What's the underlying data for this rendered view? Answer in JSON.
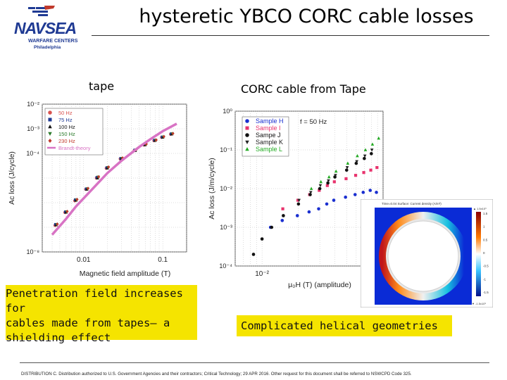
{
  "slide": {
    "title": "hysteretic YBCO CORC cable losses",
    "logo": {
      "name": "NAVSEA",
      "line1": "WARFARE CENTERS",
      "line2": "Philadelphia"
    },
    "label_left": "tape",
    "label_right": "CORC cable from Tape",
    "note_left": [
      "Penetration field increases for",
      "cables made from tapes– a",
      "shielding effect"
    ],
    "note_right": "Complicated helical geometries",
    "footer": "DISTRIBUTION C. Distribution authorized to U.S. Government Agencies and their contractors; Critical Technology; 29 APR 2016. Other request for this document shall be referred to NSWCPD Code 325.",
    "colors": {
      "note_bg": "#f5e400",
      "title": "#000000"
    }
  },
  "chart_data": [
    {
      "type": "scatter",
      "xlabel": "Magnetic field amplitude (T)",
      "ylabel": "Ac loss (J/cycle)",
      "x_scale": "log",
      "y_scale": "log",
      "xlim": [
        0.003,
        0.2
      ],
      "ylim": [
        1e-08,
        0.01
      ],
      "x_ticks": [
        {
          "v": 0.01,
          "label": "0.01"
        },
        {
          "v": 0.1,
          "label": "0.1"
        }
      ],
      "y_ticks": [
        {
          "v": 0.01,
          "label": "10⁻²"
        },
        {
          "v": 0.0001,
          "label": "10⁻⁴"
        },
        {
          "v": 1e-08,
          "label": "10⁻⁸"
        }
      ],
      "y_ticks_partial": [
        {
          "v": 0.001,
          "label": "10⁻³"
        }
      ],
      "legend_position": "top-left",
      "series": [
        {
          "name": "50 Hz",
          "color": "#d9534f",
          "marker": "circle",
          "x": [
            0.0045,
            0.006,
            0.008,
            0.011,
            0.015,
            0.02,
            0.03,
            0.045,
            0.06,
            0.08,
            0.1,
            0.13
          ],
          "y": [
            1.2e-07,
            4e-07,
            1.2e-06,
            3.5e-06,
            1e-05,
            2.5e-05,
            6e-05,
            0.00013,
            0.00022,
            0.00033,
            0.00045,
            0.0006
          ]
        },
        {
          "name": "75 Hz",
          "color": "#1f3a93",
          "marker": "square",
          "x": [
            0.0045,
            0.006,
            0.008,
            0.011,
            0.015,
            0.02,
            0.03,
            0.045,
            0.06,
            0.08,
            0.1,
            0.13
          ],
          "y": [
            1.3e-07,
            4.2e-07,
            1.3e-06,
            3.6e-06,
            1.05e-05,
            2.6e-05,
            6.2e-05,
            0.000135,
            0.00023,
            0.00034,
            0.00046,
            0.00062
          ]
        },
        {
          "name": "100 Hz",
          "color": "#111111",
          "marker": "triangle",
          "x": [
            0.0045,
            0.006,
            0.008,
            0.011,
            0.015,
            0.02,
            0.03,
            0.045,
            0.06,
            0.08,
            0.1,
            0.13
          ],
          "y": [
            1.25e-07,
            4.1e-07,
            1.25e-06,
            3.5e-06,
            1e-05,
            2.55e-05,
            6.1e-05,
            0.00013,
            0.000225,
            0.000335,
            0.00045,
            0.00061
          ]
        },
        {
          "name": "150 Hz",
          "color": "#2a7a2a",
          "marker": "triangle-down",
          "x": [
            0.0045,
            0.006,
            0.008,
            0.011,
            0.015,
            0.02,
            0.03,
            0.045,
            0.06,
            0.08,
            0.1,
            0.13
          ],
          "y": [
            1.3e-07,
            4.3e-07,
            1.3e-06,
            3.7e-06,
            1.1e-05,
            2.7e-05,
            6.3e-05,
            0.00014,
            0.000235,
            0.000345,
            0.00047,
            0.00063
          ]
        },
        {
          "name": "230 Hz",
          "color": "#c0392b",
          "marker": "diamond",
          "x": [
            0.0045,
            0.006,
            0.008,
            0.011,
            0.015,
            0.02,
            0.03,
            0.045,
            0.06,
            0.08,
            0.1,
            0.13
          ],
          "y": [
            1.35e-07,
            4.4e-07,
            1.35e-06,
            3.8e-06,
            1.12e-05,
            2.8e-05,
            6.5e-05,
            0.000145,
            0.00024,
            0.00035,
            0.00048,
            0.00064
          ]
        },
        {
          "name": "Brandt-theory",
          "color": "#d873c4",
          "marker": "line",
          "x": [
            0.004,
            0.006,
            0.008,
            0.01,
            0.015,
            0.02,
            0.03,
            0.05,
            0.07,
            0.1,
            0.15
          ],
          "y": [
            5e-08,
            2.2e-07,
            7e-07,
            1.5e-06,
            6e-06,
            1.6e-05,
            5e-05,
            0.00018,
            0.00038,
            0.0008,
            0.0016
          ]
        }
      ]
    },
    {
      "type": "scatter",
      "xlabel": "μ₀H (T) (amplitude)",
      "ylabel": "Ac loss (J/m/cycle)",
      "x_scale": "log",
      "y_scale": "log",
      "xlim": [
        0.006,
        0.1
      ],
      "ylim": [
        0.0001,
        1
      ],
      "x_ticks": [
        {
          "v": 0.01,
          "label": "10⁻²"
        }
      ],
      "y_ticks": [
        {
          "v": 1,
          "label": "10⁰"
        },
        {
          "v": 0.1,
          "label": "10⁻¹"
        },
        {
          "v": 0.01,
          "label": "10⁻²"
        },
        {
          "v": 0.001,
          "label": "10⁻³"
        },
        {
          "v": 0.0001,
          "label": "10⁻⁴"
        }
      ],
      "annotation": "f = 50 Hz",
      "legend_position": "top-left",
      "series": [
        {
          "name": "Sample H",
          "color": "#1a2fd0",
          "marker": "circle",
          "x": [
            0.012,
            0.015,
            0.02,
            0.025,
            0.03,
            0.035,
            0.04,
            0.05,
            0.06,
            0.07,
            0.08,
            0.09
          ],
          "y": [
            0.001,
            0.0015,
            0.002,
            0.0025,
            0.003,
            0.004,
            0.005,
            0.006,
            0.007,
            0.008,
            0.009,
            0.008
          ]
        },
        {
          "name": "Sample I",
          "color": "#e8336d",
          "marker": "square",
          "x": [
            0.015,
            0.02,
            0.025,
            0.03,
            0.035,
            0.04,
            0.05,
            0.06,
            0.07,
            0.08,
            0.09
          ],
          "y": [
            0.003,
            0.005,
            0.007,
            0.009,
            0.012,
            0.015,
            0.018,
            0.022,
            0.026,
            0.03,
            0.035
          ]
        },
        {
          "name": "Sampe J",
          "color": "#111111",
          "marker": "circle",
          "x": [
            0.0085,
            0.01,
            0.012,
            0.015,
            0.02,
            0.025,
            0.03,
            0.035,
            0.04,
            0.05,
            0.06,
            0.07,
            0.08
          ],
          "y": [
            0.0002,
            0.0005,
            0.001,
            0.002,
            0.004,
            0.007,
            0.01,
            0.014,
            0.02,
            0.03,
            0.045,
            0.06,
            0.08
          ]
        },
        {
          "name": "Sample K",
          "color": "#222222",
          "marker": "triangle-down",
          "x": [
            0.02,
            0.025,
            0.03,
            0.035,
            0.04,
            0.05,
            0.06,
            0.07,
            0.08
          ],
          "y": [
            0.005,
            0.008,
            0.012,
            0.016,
            0.022,
            0.035,
            0.05,
            0.07,
            0.1
          ]
        },
        {
          "name": "Sample L",
          "color": "#22aa22",
          "marker": "triangle",
          "x": [
            0.025,
            0.03,
            0.035,
            0.04,
            0.05,
            0.06,
            0.07,
            0.08,
            0.09
          ],
          "y": [
            0.01,
            0.015,
            0.02,
            0.028,
            0.045,
            0.07,
            0.1,
            0.14,
            0.2
          ]
        }
      ]
    }
  ],
  "inset": {
    "title": "Time=0.04  Surface: Current density (A/m²)",
    "colorbar_ticks": [
      "1.5",
      "1",
      "0.5",
      "0",
      "-0.5",
      "-1",
      "-1.5"
    ],
    "colorbar_max": "▲ 1.5x10⁹",
    "colorbar_min": "▼ -1.5x10⁹"
  }
}
